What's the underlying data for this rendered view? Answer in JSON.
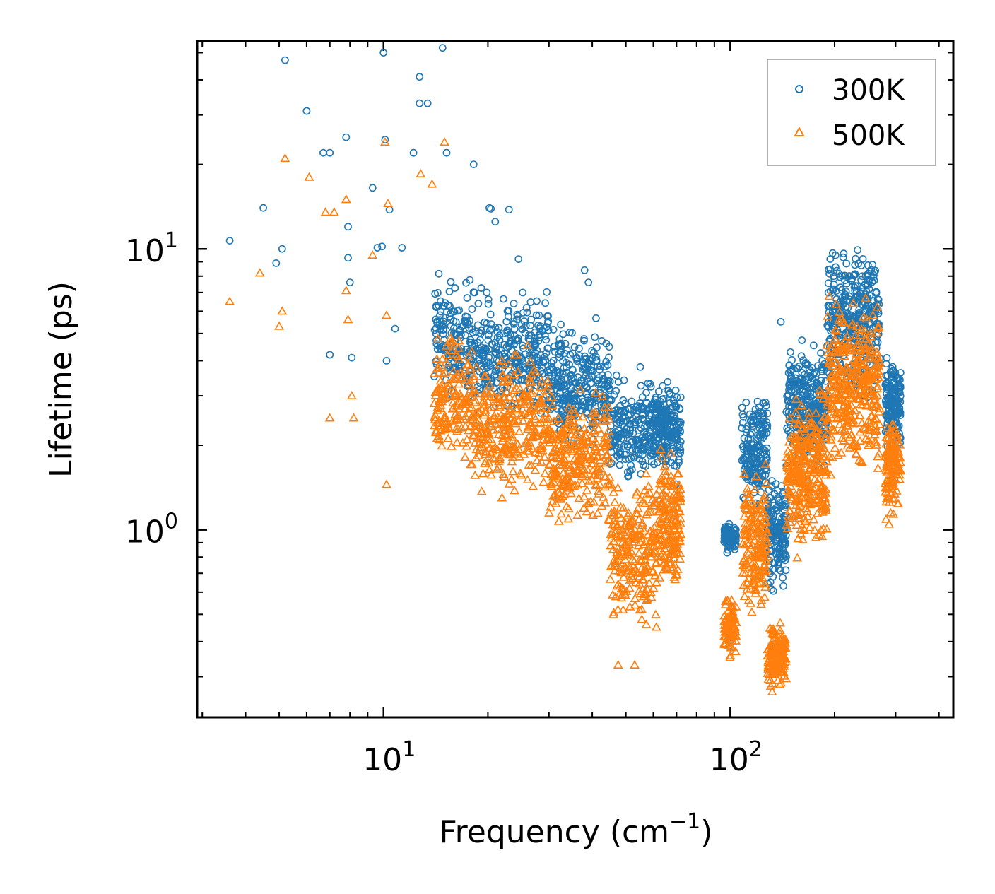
{
  "chart_data": {
    "type": "scatter",
    "xscale": "log",
    "yscale": "log",
    "xlim": [
      2.9,
      440
    ],
    "ylim": [
      0.215,
      55
    ],
    "xlabel": "Frequency (cm",
    "xlabel_sup": "−1",
    "xlabel_tail": ")",
    "ylabel": "Lifetime (ps)",
    "x_ticks": [
      {
        "value": 10,
        "base": "10",
        "exp": "1"
      },
      {
        "value": 100,
        "base": "10",
        "exp": "2"
      }
    ],
    "y_ticks": [
      {
        "value": 1,
        "base": "10",
        "exp": "0"
      },
      {
        "value": 10,
        "base": "10",
        "exp": "1"
      }
    ],
    "legend_position": "top-right",
    "series": [
      {
        "name": "300K",
        "marker": "circle",
        "color": "#1f77b4",
        "clusters": [
          {
            "x_range": [
              14,
              18
            ],
            "y_range": [
              2.5,
              9
            ],
            "count": 160
          },
          {
            "x_range": [
              18,
              30
            ],
            "y_range": [
              2.2,
              8
            ],
            "count": 320
          },
          {
            "x_range": [
              30,
              45
            ],
            "y_range": [
              1.8,
              6
            ],
            "count": 280
          },
          {
            "x_range": [
              45,
              62
            ],
            "y_range": [
              1.4,
              3.8
            ],
            "count": 240
          },
          {
            "x_range": [
              62,
              72
            ],
            "y_range": [
              1.4,
              3.6
            ],
            "count": 180
          },
          {
            "x_range": [
              96,
              104
            ],
            "y_range": [
              0.8,
              1.1
            ],
            "count": 90
          },
          {
            "x_range": [
              108,
              128
            ],
            "y_range": [
              1.1,
              3.5
            ],
            "count": 180
          },
          {
            "x_range": [
              128,
              145
            ],
            "y_range": [
              0.55,
              1.7
            ],
            "count": 160
          },
          {
            "x_range": [
              145,
              190
            ],
            "y_range": [
              1.5,
              5
            ],
            "count": 320
          },
          {
            "x_range": [
              190,
              270
            ],
            "y_range": [
              2.5,
              12
            ],
            "count": 380
          },
          {
            "x_range": [
              280,
              310
            ],
            "y_range": [
              1.8,
              4.3
            ],
            "count": 160
          }
        ],
        "outliers": [
          [
            3.6,
            10.7
          ],
          [
            4.5,
            14.0
          ],
          [
            4.9,
            8.9
          ],
          [
            5.1,
            10.0
          ],
          [
            5.2,
            47.0
          ],
          [
            6.0,
            31.0
          ],
          [
            6.7,
            22.0
          ],
          [
            7.0,
            22.0
          ],
          [
            7.0,
            4.2
          ],
          [
            7.8,
            25.0
          ],
          [
            7.9,
            12.0
          ],
          [
            7.9,
            9.3
          ],
          [
            8.1,
            4.1
          ],
          [
            8.0,
            7.6
          ],
          [
            9.3,
            16.5
          ],
          [
            9.6,
            10.1
          ],
          [
            9.9,
            10.2
          ],
          [
            10.0,
            50.0
          ],
          [
            10.1,
            24.5
          ],
          [
            10.2,
            4.0
          ],
          [
            10.4,
            13.8
          ],
          [
            10.8,
            5.2
          ],
          [
            11.3,
            10.1
          ],
          [
            12.2,
            22.0
          ],
          [
            12.7,
            41.0
          ],
          [
            12.7,
            33.0
          ],
          [
            13.4,
            33.0
          ],
          [
            14.8,
            52.0
          ],
          [
            15.2,
            22.0
          ],
          [
            18.2,
            20.0
          ],
          [
            20.2,
            14.0
          ],
          [
            20.4,
            13.9
          ],
          [
            21.0,
            12.5
          ],
          [
            23.0,
            13.8
          ],
          [
            24.5,
            9.2
          ],
          [
            38.0,
            8.4
          ],
          [
            39.0,
            7.6
          ],
          [
            55.0,
            3.8
          ],
          [
            140.0,
            5.5
          ]
        ]
      },
      {
        "name": "500K",
        "marker": "triangle",
        "color": "#ff7f0e",
        "clusters": [
          {
            "x_range": [
              14,
              18
            ],
            "y_range": [
              1.4,
              6
            ],
            "count": 160
          },
          {
            "x_range": [
              18,
              30
            ],
            "y_range": [
              1.1,
              5
            ],
            "count": 320
          },
          {
            "x_range": [
              30,
              45
            ],
            "y_range": [
              0.9,
              3.5
            ],
            "count": 280
          },
          {
            "x_range": [
              45,
              62
            ],
            "y_range": [
              0.4,
              1.8
            ],
            "count": 240
          },
          {
            "x_range": [
              62,
              72
            ],
            "y_range": [
              0.55,
              2.2
            ],
            "count": 180
          },
          {
            "x_range": [
              96,
              104
            ],
            "y_range": [
              0.33,
              0.65
            ],
            "count": 90
          },
          {
            "x_range": [
              108,
              128
            ],
            "y_range": [
              0.45,
              1.9
            ],
            "count": 180
          },
          {
            "x_range": [
              128,
              145
            ],
            "y_range": [
              0.25,
              0.5
            ],
            "count": 160
          },
          {
            "x_range": [
              145,
              190
            ],
            "y_range": [
              0.75,
              3.5
            ],
            "count": 320
          },
          {
            "x_range": [
              190,
              270
            ],
            "y_range": [
              1.3,
              8
            ],
            "count": 380
          },
          {
            "x_range": [
              280,
              310
            ],
            "y_range": [
              0.95,
              2.8
            ],
            "count": 160
          }
        ],
        "outliers": [
          [
            3.6,
            6.5
          ],
          [
            4.4,
            8.2
          ],
          [
            5.0,
            5.3
          ],
          [
            5.1,
            6.0
          ],
          [
            5.2,
            21.0
          ],
          [
            6.1,
            18.0
          ],
          [
            6.8,
            13.5
          ],
          [
            7.2,
            13.5
          ],
          [
            7.0,
            2.5
          ],
          [
            7.8,
            15.0
          ],
          [
            7.8,
            7.1
          ],
          [
            7.9,
            5.6
          ],
          [
            8.2,
            2.5
          ],
          [
            8.1,
            3.0
          ],
          [
            9.3,
            9.5
          ],
          [
            10.2,
            5.8
          ],
          [
            10.1,
            24.0
          ],
          [
            10.3,
            14.5
          ],
          [
            10.2,
            1.45
          ],
          [
            12.8,
            18.5
          ],
          [
            13.8,
            17.0
          ],
          [
            15.0,
            24.0
          ],
          [
            47.5,
            0.33
          ],
          [
            53.0,
            0.33
          ]
        ]
      }
    ]
  }
}
